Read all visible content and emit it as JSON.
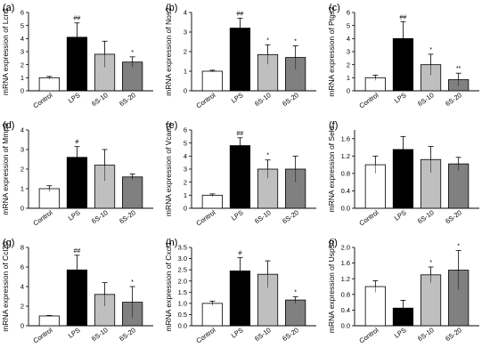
{
  "chart_data": [
    {
      "panel": "(a)",
      "type": "bar",
      "ylabel": "mRNA expression of Lcn2",
      "categories": [
        "Control",
        "LPS",
        "6S-10",
        "6S-20"
      ],
      "values": [
        1.0,
        4.1,
        2.8,
        2.2
      ],
      "errors": [
        0.1,
        1.1,
        1.0,
        0.4
      ],
      "significance": [
        "",
        "##",
        "",
        "*"
      ],
      "colors": [
        "#ffffff",
        "#000000",
        "#bfbfbf",
        "#808080"
      ],
      "ylim": [
        0,
        6
      ],
      "yticks": [
        0,
        1,
        2,
        3,
        4,
        5,
        6
      ]
    },
    {
      "panel": "(b)",
      "type": "bar",
      "ylabel": "mRNA expression of Nos2",
      "categories": [
        "Control",
        "LPS",
        "6S-10",
        "6S-20"
      ],
      "values": [
        1.0,
        3.2,
        1.85,
        1.7
      ],
      "errors": [
        0.05,
        0.5,
        0.5,
        0.6
      ],
      "significance": [
        "",
        "##",
        "*",
        "*"
      ],
      "colors": [
        "#ffffff",
        "#000000",
        "#bfbfbf",
        "#808080"
      ],
      "ylim": [
        0,
        4
      ],
      "yticks": [
        0,
        1,
        2,
        3,
        4
      ]
    },
    {
      "panel": "(c)",
      "type": "bar",
      "ylabel": "mRNA expression of Ptgs2",
      "categories": [
        "Control",
        "LPS",
        "6S-10",
        "6S-20"
      ],
      "values": [
        1.0,
        4.0,
        2.0,
        0.85
      ],
      "errors": [
        0.2,
        1.3,
        0.8,
        0.5
      ],
      "significance": [
        "",
        "##",
        "*",
        "**"
      ],
      "colors": [
        "#ffffff",
        "#000000",
        "#bfbfbf",
        "#808080"
      ],
      "ylim": [
        0,
        6
      ],
      "yticks": [
        0,
        1,
        2,
        3,
        4,
        5,
        6
      ]
    },
    {
      "panel": "(d)",
      "type": "bar",
      "ylabel": "mRNA expression of Mmp9",
      "categories": [
        "Control",
        "LPS",
        "6S-10",
        "6S-20"
      ],
      "values": [
        1.0,
        2.6,
        2.2,
        1.6
      ],
      "errors": [
        0.15,
        0.55,
        0.8,
        0.15
      ],
      "significance": [
        "",
        "#",
        "",
        ""
      ],
      "colors": [
        "#ffffff",
        "#000000",
        "#bfbfbf",
        "#808080"
      ],
      "ylim": [
        0,
        4
      ],
      "yticks": [
        0,
        1,
        2,
        3,
        4
      ]
    },
    {
      "panel": "(e)",
      "type": "bar",
      "ylabel": "mRNA expression of Vcam1",
      "categories": [
        "Control",
        "LPS",
        "6S-10",
        "6S-20"
      ],
      "values": [
        1.0,
        4.8,
        3.0,
        3.0
      ],
      "errors": [
        0.1,
        0.6,
        0.7,
        1.0
      ],
      "significance": [
        "",
        "##",
        "*",
        ""
      ],
      "colors": [
        "#ffffff",
        "#000000",
        "#bfbfbf",
        "#808080"
      ],
      "ylim": [
        0,
        6
      ],
      "yticks": [
        0,
        1,
        2,
        3,
        4,
        5,
        6
      ]
    },
    {
      "panel": "(f)",
      "type": "bar",
      "ylabel": "mRNA expression of Sele",
      "categories": [
        "Control",
        "LPS",
        "6S-10",
        "6S-20"
      ],
      "values": [
        1.0,
        1.35,
        1.12,
        1.02
      ],
      "errors": [
        0.2,
        0.3,
        0.3,
        0.15
      ],
      "significance": [
        "",
        "",
        "",
        ""
      ],
      "colors": [
        "#ffffff",
        "#000000",
        "#bfbfbf",
        "#808080"
      ],
      "ylim": [
        0,
        1.8
      ],
      "yticks": [
        0.0,
        0.4,
        0.8,
        1.2,
        1.6
      ],
      "ytick_decimals": 1
    },
    {
      "panel": "(g)",
      "type": "bar",
      "ylabel": "mRNA expression of Ccl20",
      "categories": [
        "Control",
        "LPS",
        "6S-10",
        "6S-20"
      ],
      "values": [
        1.0,
        5.7,
        3.2,
        2.4
      ],
      "errors": [
        0.05,
        1.5,
        1.2,
        1.6
      ],
      "significance": [
        "",
        "##",
        "",
        "*"
      ],
      "colors": [
        "#ffffff",
        "#000000",
        "#bfbfbf",
        "#808080"
      ],
      "ylim": [
        0,
        8
      ],
      "yticks": [
        0,
        2,
        4,
        6,
        8
      ]
    },
    {
      "panel": "(h)",
      "type": "bar",
      "ylabel": "mRNA expression of Cxcl1",
      "categories": [
        "Control",
        "LPS",
        "6S-10",
        "6S-20"
      ],
      "values": [
        1.0,
        2.45,
        2.3,
        1.15
      ],
      "errors": [
        0.1,
        0.6,
        0.6,
        0.15
      ],
      "significance": [
        "",
        "#",
        "",
        "*"
      ],
      "colors": [
        "#ffffff",
        "#000000",
        "#bfbfbf",
        "#808080"
      ],
      "ylim": [
        0,
        3.5
      ],
      "yticks": [
        0.0,
        0.5,
        1.0,
        1.5,
        2.0,
        2.5,
        3.0,
        3.5
      ],
      "ytick_decimals": 1
    },
    {
      "panel": "(i)",
      "type": "bar",
      "ylabel": "mRNA expression of Usp50",
      "categories": [
        "Control",
        "LPS",
        "6S-10",
        "6S-20"
      ],
      "values": [
        1.0,
        0.45,
        1.3,
        1.42
      ],
      "errors": [
        0.15,
        0.2,
        0.2,
        0.5
      ],
      "significance": [
        "",
        "",
        "*",
        "*"
      ],
      "colors": [
        "#ffffff",
        "#000000",
        "#bfbfbf",
        "#808080"
      ],
      "ylim": [
        0,
        2.0
      ],
      "yticks": [
        0.0,
        0.4,
        0.8,
        1.2,
        1.6,
        2.0
      ],
      "ytick_decimals": 1
    }
  ]
}
